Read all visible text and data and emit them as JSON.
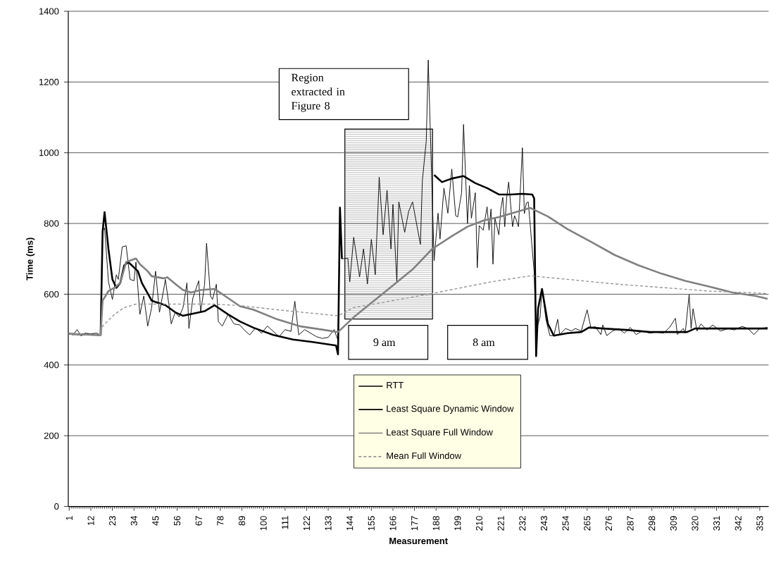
{
  "chart_data": {
    "type": "line",
    "xlabel": "Measurement",
    "ylabel": "Time (ms)",
    "xlim": [
      0.5,
      357.5
    ],
    "xticks": [
      1,
      12,
      23,
      34,
      45,
      56,
      67,
      78,
      89,
      100,
      111,
      122,
      133,
      144,
      155,
      166,
      177,
      188,
      199,
      210,
      221,
      232,
      243,
      254,
      265,
      276,
      287,
      298,
      309,
      320,
      331,
      342,
      353
    ],
    "ylim": [
      0,
      1400
    ],
    "yticks": [
      0,
      200,
      400,
      600,
      800,
      1000,
      1200,
      1400
    ],
    "grid": "y",
    "legend": "bottom",
    "annotations": [
      "Region extracted in Figure 8",
      "9 am",
      "8 am"
    ],
    "series": [
      {
        "name": "RTT",
        "color": "#000000",
        "line_style": "solid",
        "x": [
          1,
          3,
          5,
          7,
          9,
          12,
          15,
          17,
          18,
          19,
          21,
          23,
          25,
          26,
          28,
          30,
          32,
          34,
          35,
          37,
          39,
          41,
          43,
          45,
          47,
          49,
          50,
          52,
          53,
          55,
          57,
          59,
          61,
          62,
          64,
          67,
          68,
          70,
          71,
          73,
          74,
          76,
          77,
          79,
          82,
          85,
          88,
          90,
          93,
          96,
          99,
          102,
          105,
          108,
          111,
          114,
          116,
          118,
          121,
          124,
          127,
          130,
          133,
          136,
          138,
          139,
          140,
          143,
          144,
          146,
          149,
          151,
          153,
          155,
          157,
          159,
          161,
          163,
          165,
          166,
          168,
          169,
          172,
          174,
          176,
          180,
          181,
          183,
          184,
          187,
          189,
          190,
          192,
          194,
          196,
          198,
          199,
          201,
          202,
          204,
          205,
          206,
          208,
          209,
          210,
          212,
          214,
          215,
          216,
          217,
          218,
          220,
          221,
          222,
          223,
          224,
          225,
          227,
          228,
          229,
          230,
          232,
          233,
          234,
          235,
          237,
          238,
          239,
          241,
          242,
          244,
          246,
          248,
          250,
          251,
          254,
          257,
          259,
          262,
          265,
          267,
          269,
          272,
          273,
          275,
          278,
          281,
          284,
          287,
          290,
          293,
          297,
          300,
          304,
          307,
          310,
          311,
          314,
          315,
          317,
          318,
          319,
          321,
          323,
          326,
          329,
          333,
          337,
          340,
          344,
          347,
          350,
          353,
          357
        ],
        "values": [
          490,
          485,
          500,
          482,
          490,
          488,
          490,
          484,
          780,
          787,
          635,
          585,
          655,
          642,
          734,
          737,
          642,
          638,
          691,
          543,
          595,
          510,
          562,
          665,
          549,
          609,
          642,
          562,
          516,
          549,
          536,
          562,
          632,
          503,
          589,
          638,
          549,
          628,
          744,
          595,
          585,
          628,
          523,
          510,
          543,
          516,
          513,
          500,
          485,
          505,
          490,
          510,
          495,
          480,
          500,
          495,
          580,
          485,
          500,
          490,
          480,
          475,
          478,
          500,
          470,
          800,
          700,
          702,
          635,
          761,
          649,
          728,
          629,
          755,
          655,
          931,
          768,
          894,
          728,
          854,
          635,
          861,
          775,
          834,
          861,
          741,
          921,
          1034,
          1262,
          695,
          829,
          756,
          900,
          829,
          954,
          822,
          818,
          887,
          1080,
          800,
          907,
          815,
          887,
          675,
          794,
          781,
          847,
          781,
          841,
          685,
          815,
          768,
          841,
          874,
          791,
          874,
          917,
          791,
          822,
          808,
          791,
          1014,
          828,
          858,
          861,
          728,
          662,
          496,
          536,
          615,
          529,
          483,
          483,
          529,
          486,
          503,
          496,
          503,
          496,
          556,
          503,
          509,
          486,
          513,
          483,
          496,
          503,
          490,
          506,
          486,
          496,
          490,
          493,
          490,
          506,
          532,
          486,
          503,
          490,
          599,
          503,
          559,
          496,
          516,
          499,
          513,
          496,
          503,
          499,
          509,
          503,
          486,
          503,
          506
        ]
      },
      {
        "name": "Least Square Dynamic Window",
        "color": "#000000",
        "line_style": "solid",
        "x": [
          1,
          10,
          17,
          18,
          19,
          21,
          23,
          25,
          27,
          29,
          31,
          33,
          36,
          38,
          41,
          43,
          46,
          50,
          55,
          59,
          65,
          70,
          75,
          82,
          88,
          95,
          105,
          115,
          125,
          137,
          138,
          139,
          140,
          163,
          187,
          191,
          196,
          202,
          208,
          214,
          220,
          226,
          232,
          237,
          238,
          239,
          240,
          242,
          245,
          248,
          255,
          262,
          266,
          273,
          285,
          297,
          309,
          316,
          320,
          333,
          357
        ],
        "values": [
          488,
          486,
          485,
          777,
          832,
          727,
          642,
          618,
          632,
          681,
          691,
          681,
          665,
          632,
          602,
          582,
          576,
          569,
          549,
          539,
          546,
          552,
          569,
          543,
          523,
          505,
          485,
          472,
          465,
          455,
          430,
          845,
          700,
          null,
          937,
          917,
          927,
          934,
          914,
          900,
          882,
          882,
          884,
          882,
          871,
          425,
          560,
          615,
          516,
          483,
          490,
          493,
          506,
          503,
          499,
          493,
          493,
          493,
          503,
          503,
          503
        ]
      },
      {
        "name": "Least Square Full Window",
        "color": "#808080",
        "line_style": "solid",
        "x": [
          1,
          10,
          17,
          18,
          21,
          24,
          27,
          30,
          35,
          37,
          41,
          43,
          49,
          51,
          56,
          59,
          63,
          68,
          75,
          82,
          88,
          95,
          107,
          119,
          131,
          138,
          146,
          156,
          166,
          176,
          186,
          196,
          204,
          212,
          220,
          228,
          236,
          245,
          255,
          267,
          279,
          291,
          303,
          315,
          327,
          339,
          351,
          357
        ],
        "values": [
          488,
          486,
          485,
          582,
          609,
          618,
          632,
          691,
          701,
          685,
          665,
          651,
          645,
          648,
          625,
          612,
          605,
          612,
          615,
          589,
          566,
          556,
          529,
          509,
          499,
          493,
          535,
          580,
          625,
          670,
          728,
          764,
          791,
          808,
          818,
          831,
          844,
          820,
          784,
          748,
          711,
          682,
          658,
          638,
          622,
          605,
          595,
          587
        ]
      },
      {
        "name": "Mean Full Window",
        "color": "#969696",
        "line_style": "dashed",
        "x": [
          1,
          17,
          18,
          24,
          29,
          35,
          46,
          58,
          75,
          88,
          107,
          138,
          146,
          166,
          186,
          216,
          236,
          255,
          279,
          303,
          327,
          357
        ],
        "values": [
          488,
          485,
          510,
          543,
          562,
          572,
          572,
          572,
          572,
          568,
          556,
          539,
          562,
          582,
          602,
          635,
          652,
          642,
          629,
          619,
          609,
          602
        ]
      }
    ]
  }
}
